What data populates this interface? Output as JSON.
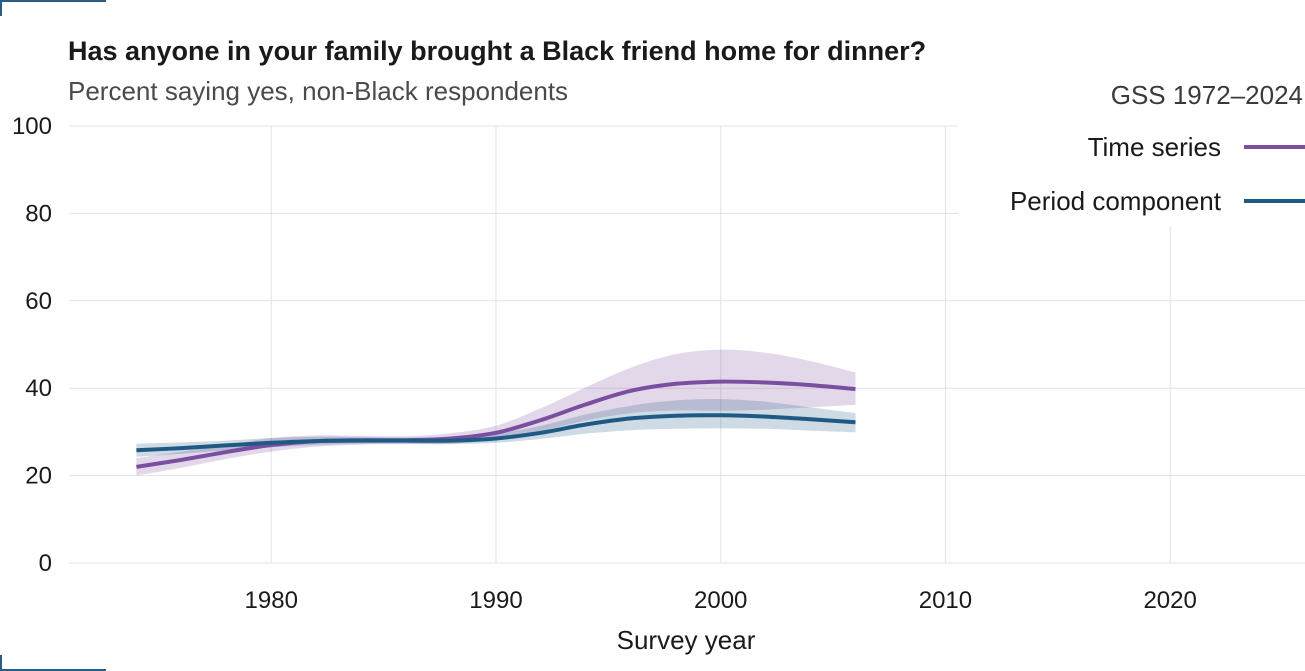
{
  "title": "Has anyone in your family brought a Black friend home for dinner?",
  "subtitle": "Percent saying yes, non-Black respondents",
  "source": "GSS 1972–2024",
  "chart_data": {
    "type": "line",
    "title": "Has anyone in your family brought a Black friend home for dinner?",
    "subtitle": "Percent saying yes, non-Black respondents",
    "xlabel": "Survey year",
    "ylabel": "",
    "xlim": [
      1971,
      2026
    ],
    "ylim": [
      0,
      100
    ],
    "x_ticks": [
      1980,
      1990,
      2000,
      2010,
      2020
    ],
    "y_ticks": [
      0,
      20,
      40,
      60,
      80,
      100
    ],
    "grid": true,
    "legend_position": "top-right",
    "series": [
      {
        "name": "Time series",
        "color": "#7b4fa0",
        "x": [
          1974,
          1976,
          1978,
          1980,
          1982,
          1984,
          1986,
          1988,
          1990,
          1992,
          1994,
          1996,
          1998,
          2000,
          2002,
          2004,
          2006
        ],
        "y": [
          22.0,
          23.6,
          25.4,
          27.0,
          27.9,
          28.1,
          28.1,
          28.5,
          29.8,
          32.7,
          36.3,
          39.4,
          41.0,
          41.5,
          41.3,
          40.7,
          39.8
        ],
        "lower": [
          20.0,
          21.8,
          23.8,
          25.5,
          26.6,
          27.1,
          27.2,
          27.3,
          28.2,
          30.2,
          32.6,
          34.3,
          34.9,
          34.8,
          35.1,
          35.6,
          36.2
        ],
        "upper": [
          24.0,
          25.5,
          27.0,
          28.6,
          29.2,
          29.1,
          29.0,
          29.7,
          31.4,
          35.4,
          40.2,
          44.7,
          47.8,
          48.8,
          48.1,
          46.2,
          43.6
        ]
      },
      {
        "name": "Period component",
        "color": "#1f5a85",
        "x": [
          1974,
          1976,
          1978,
          1980,
          1982,
          1984,
          1986,
          1988,
          1990,
          1992,
          1994,
          1996,
          1998,
          2000,
          2002,
          2004,
          2006
        ],
        "y": [
          25.8,
          26.3,
          26.9,
          27.5,
          27.9,
          28.0,
          28.0,
          28.0,
          28.5,
          29.8,
          31.7,
          33.1,
          33.7,
          33.8,
          33.5,
          32.9,
          32.2
        ],
        "lower": [
          24.3,
          25.0,
          25.8,
          26.5,
          27.0,
          27.3,
          27.3,
          27.2,
          27.5,
          28.4,
          29.6,
          30.4,
          30.7,
          30.8,
          30.7,
          30.3,
          29.9
        ],
        "upper": [
          27.3,
          27.6,
          28.0,
          28.6,
          28.9,
          28.8,
          28.7,
          28.8,
          29.6,
          31.4,
          34.0,
          36.0,
          37.2,
          37.5,
          36.9,
          35.6,
          34.3
        ]
      }
    ]
  }
}
